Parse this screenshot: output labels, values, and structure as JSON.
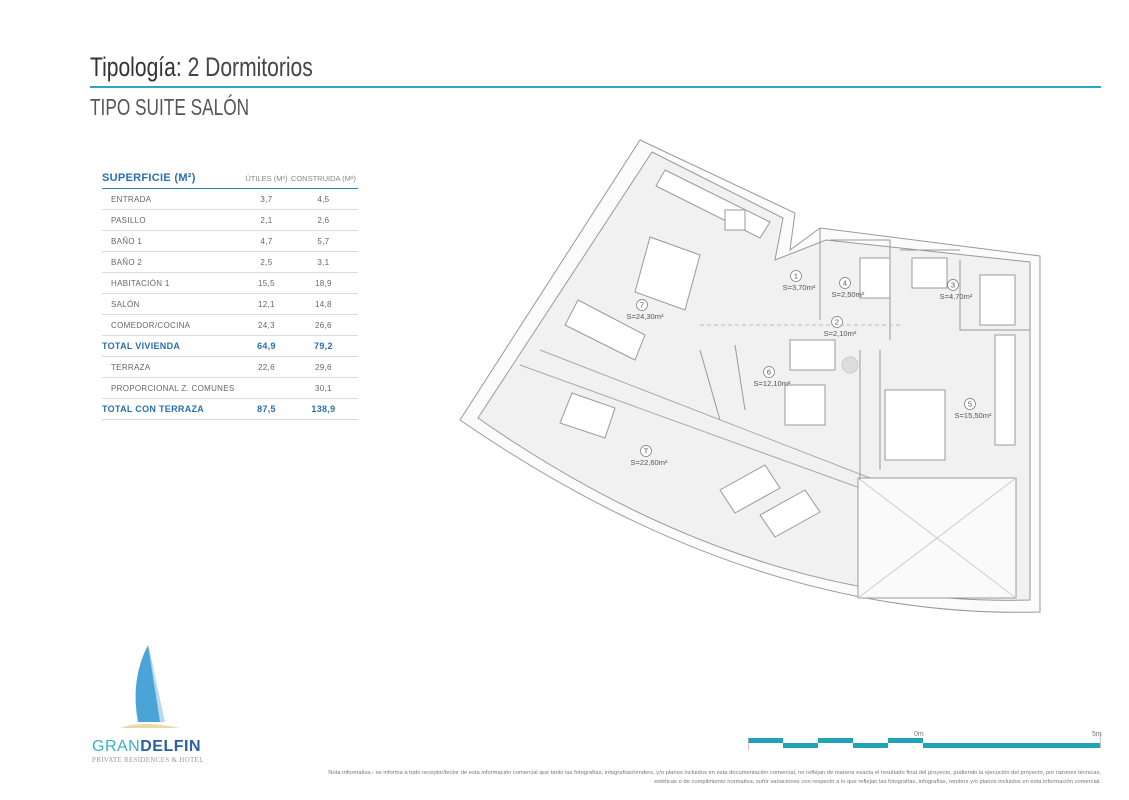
{
  "header": {
    "title_label": "Tipología:",
    "title_value": "2 Dormitorios",
    "subtitle": "TIPO SUITE SALÓN"
  },
  "colors": {
    "accent": "#2aa7bf",
    "table_blue": "#2a6fb0"
  },
  "surface_table": {
    "headers": [
      "SUPERFICIE (M²)",
      "ÚTILES (M²)",
      "CONSTRUIDA (M²)"
    ],
    "rows": [
      {
        "name": "ENTRADA",
        "utiles": "3,7",
        "construida": "4,5",
        "total": false
      },
      {
        "name": "PASILLO",
        "utiles": "2,1",
        "construida": "2,6",
        "total": false
      },
      {
        "name": "BAÑO 1",
        "utiles": "4,7",
        "construida": "5,7",
        "total": false
      },
      {
        "name": "BAÑO 2",
        "utiles": "2,5",
        "construida": "3,1",
        "total": false
      },
      {
        "name": "HABITACIÓN 1",
        "utiles": "15,5",
        "construida": "18,9",
        "total": false
      },
      {
        "name": "SALÓN",
        "utiles": "12,1",
        "construida": "14,8",
        "total": false
      },
      {
        "name": "COMEDOR/COCINA",
        "utiles": "24,3",
        "construida": "26,6",
        "total": false
      },
      {
        "name": "TOTAL VIVIENDA",
        "utiles": "64,9",
        "construida": "79,2",
        "total": true
      },
      {
        "name": "TERRAZA",
        "utiles": "22,6",
        "construida": "29,6",
        "total": false
      },
      {
        "name": "PROPORCIONAL Z. COMUNES",
        "utiles": "",
        "construida": "30,1",
        "total": false
      },
      {
        "name": "TOTAL CON TERRAZA",
        "utiles": "87,5",
        "construida": "138,9",
        "total": true
      }
    ]
  },
  "floor_plan": {
    "rooms": [
      {
        "number": "7",
        "area": "S=24,30m²"
      },
      {
        "number": "1",
        "area": "S=3,70m²"
      },
      {
        "number": "4",
        "area": "S=2,50m²"
      },
      {
        "number": "3",
        "area": "S=4,70m²"
      },
      {
        "number": "2",
        "area": "S=2,10m²"
      },
      {
        "number": "6",
        "area": "S=12,10m²"
      },
      {
        "number": "5",
        "area": "S=15,50m²"
      },
      {
        "number": "T",
        "area": "S=22,60m²"
      }
    ]
  },
  "scale_bar": {
    "start_label": "0m",
    "end_label": "5m"
  },
  "logo": {
    "brand_left": "GRAN",
    "brand_right": "DELFIN",
    "tagline": "PRIVATE RESIDENCES & HOTEL"
  },
  "note": "Nota informativa.- se informa a todo receptor/lector de esta información comercial que tanto las fotografías, infografías/renders, y/o planos incluidos en esta documentación comercial, no reflejan de manera exacta el resultado final del proyecto, pudiendo la ejecución del proyecto, por razones técnicas, estéticas o de cumplimiento normativa, sufrir variaciones con respecto a lo que reflejan las fotografías, infografías, renders y/o planos incluidos en esta información comercial."
}
